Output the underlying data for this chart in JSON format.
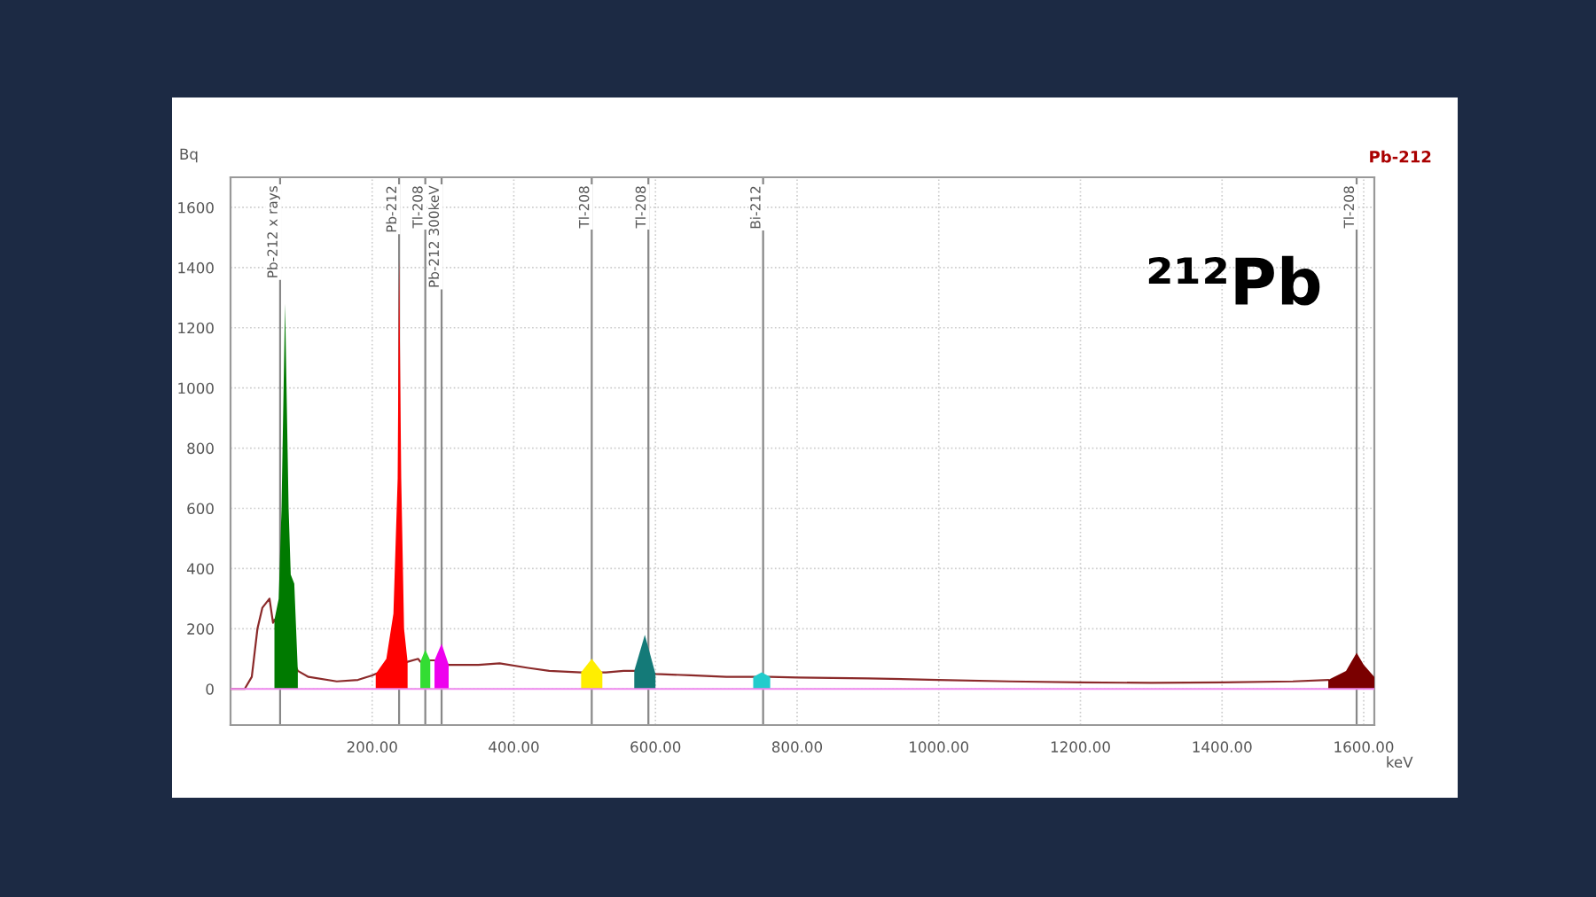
{
  "chart_data": {
    "type": "line",
    "xlabel": "keV",
    "ylabel": "Bq",
    "xlim": [
      0,
      1615
    ],
    "ylim": [
      -120,
      1700
    ],
    "xticks": [
      {
        "value": 200,
        "label": "200.00"
      },
      {
        "value": 400,
        "label": "400.00"
      },
      {
        "value": 600,
        "label": "600.00"
      },
      {
        "value": 800,
        "label": "800.00"
      },
      {
        "value": 1000,
        "label": "1000.00"
      },
      {
        "value": 1200,
        "label": "1200.00"
      },
      {
        "value": 1400,
        "label": "1400.00"
      },
      {
        "value": 1600,
        "label": "1600.00"
      }
    ],
    "yticks": [
      0,
      200,
      400,
      600,
      800,
      1000,
      1200,
      1400,
      1600
    ],
    "grid": true,
    "legend": false,
    "series": [
      {
        "color": "#8b2a2a",
        "x": [
          0,
          20,
          30,
          38,
          45,
          55,
          60,
          62,
          95,
          110,
          150,
          180,
          200,
          205,
          250,
          265,
          268,
          282,
          288,
          308,
          310,
          350,
          380,
          420,
          450,
          495,
          525,
          530,
          555,
          570,
          600,
          650,
          700,
          738,
          762,
          800,
          900,
          1000,
          1100,
          1200,
          1300,
          1400,
          1500,
          1550
        ],
        "values": [
          0,
          0,
          40,
          200,
          270,
          300,
          220,
          230,
          60,
          40,
          25,
          30,
          45,
          50,
          90,
          100,
          90,
          95,
          95,
          80,
          80,
          80,
          85,
          70,
          60,
          55,
          55,
          55,
          60,
          60,
          50,
          45,
          40,
          40,
          40,
          38,
          35,
          30,
          25,
          22,
          20,
          22,
          25,
          30
        ]
      },
      {
        "type": "area",
        "color": "#007a00",
        "x": [
          62,
          68,
          72,
          77,
          82,
          85,
          90,
          95
        ],
        "values": [
          230,
          300,
          600,
          1280,
          600,
          380,
          350,
          60
        ]
      },
      {
        "type": "area",
        "color": "#ff0000",
        "x": [
          205,
          220,
          230,
          236,
          238,
          241,
          245,
          250
        ],
        "values": [
          50,
          100,
          250,
          700,
          1430,
          700,
          200,
          90
        ]
      },
      {
        "type": "area",
        "color": "#33dd33",
        "x": [
          268,
          275,
          282
        ],
        "values": [
          90,
          130,
          95
        ]
      },
      {
        "type": "area",
        "color": "#ee00ee",
        "x": [
          288,
          298,
          308
        ],
        "values": [
          95,
          150,
          80
        ]
      },
      {
        "type": "area",
        "color": "#ffee00",
        "x": [
          495,
          510,
          525
        ],
        "values": [
          55,
          100,
          55
        ]
      },
      {
        "type": "area",
        "color": "#147a78",
        "x": [
          570,
          585,
          600
        ],
        "values": [
          60,
          180,
          50
        ]
      },
      {
        "type": "area",
        "color": "#22cccc",
        "x": [
          738,
          750,
          762
        ],
        "values": [
          40,
          55,
          40
        ]
      },
      {
        "type": "area",
        "color": "#7a0000",
        "x": [
          1550,
          1575,
          1590,
          1600,
          1615
        ],
        "values": [
          30,
          60,
          120,
          80,
          40
        ]
      }
    ],
    "ref_lines": [
      {
        "axis": "x",
        "value": 70,
        "label": "Pb-212 x rays",
        "color": "#888888"
      },
      {
        "axis": "x",
        "value": 238,
        "label": "Pb-212",
        "color": "#888888"
      },
      {
        "axis": "x",
        "value": 275,
        "label": "Tl-208",
        "color": "#888888"
      },
      {
        "axis": "x",
        "value": 298,
        "label": "Pb-212 300keV",
        "color": "#888888"
      },
      {
        "axis": "x",
        "value": 510,
        "label": "Tl-208",
        "color": "#888888"
      },
      {
        "axis": "x",
        "value": 590,
        "label": "Tl-208",
        "color": "#888888"
      },
      {
        "axis": "x",
        "value": 752,
        "label": "Bi-212",
        "color": "#888888"
      },
      {
        "axis": "x",
        "value": 1590,
        "label": "Tl-208",
        "color": "#888888"
      },
      {
        "axis": "y",
        "value": 0,
        "color": "#ee88ee"
      }
    ],
    "annotations": [
      "²¹²Pb",
      "Pb-212"
    ]
  }
}
